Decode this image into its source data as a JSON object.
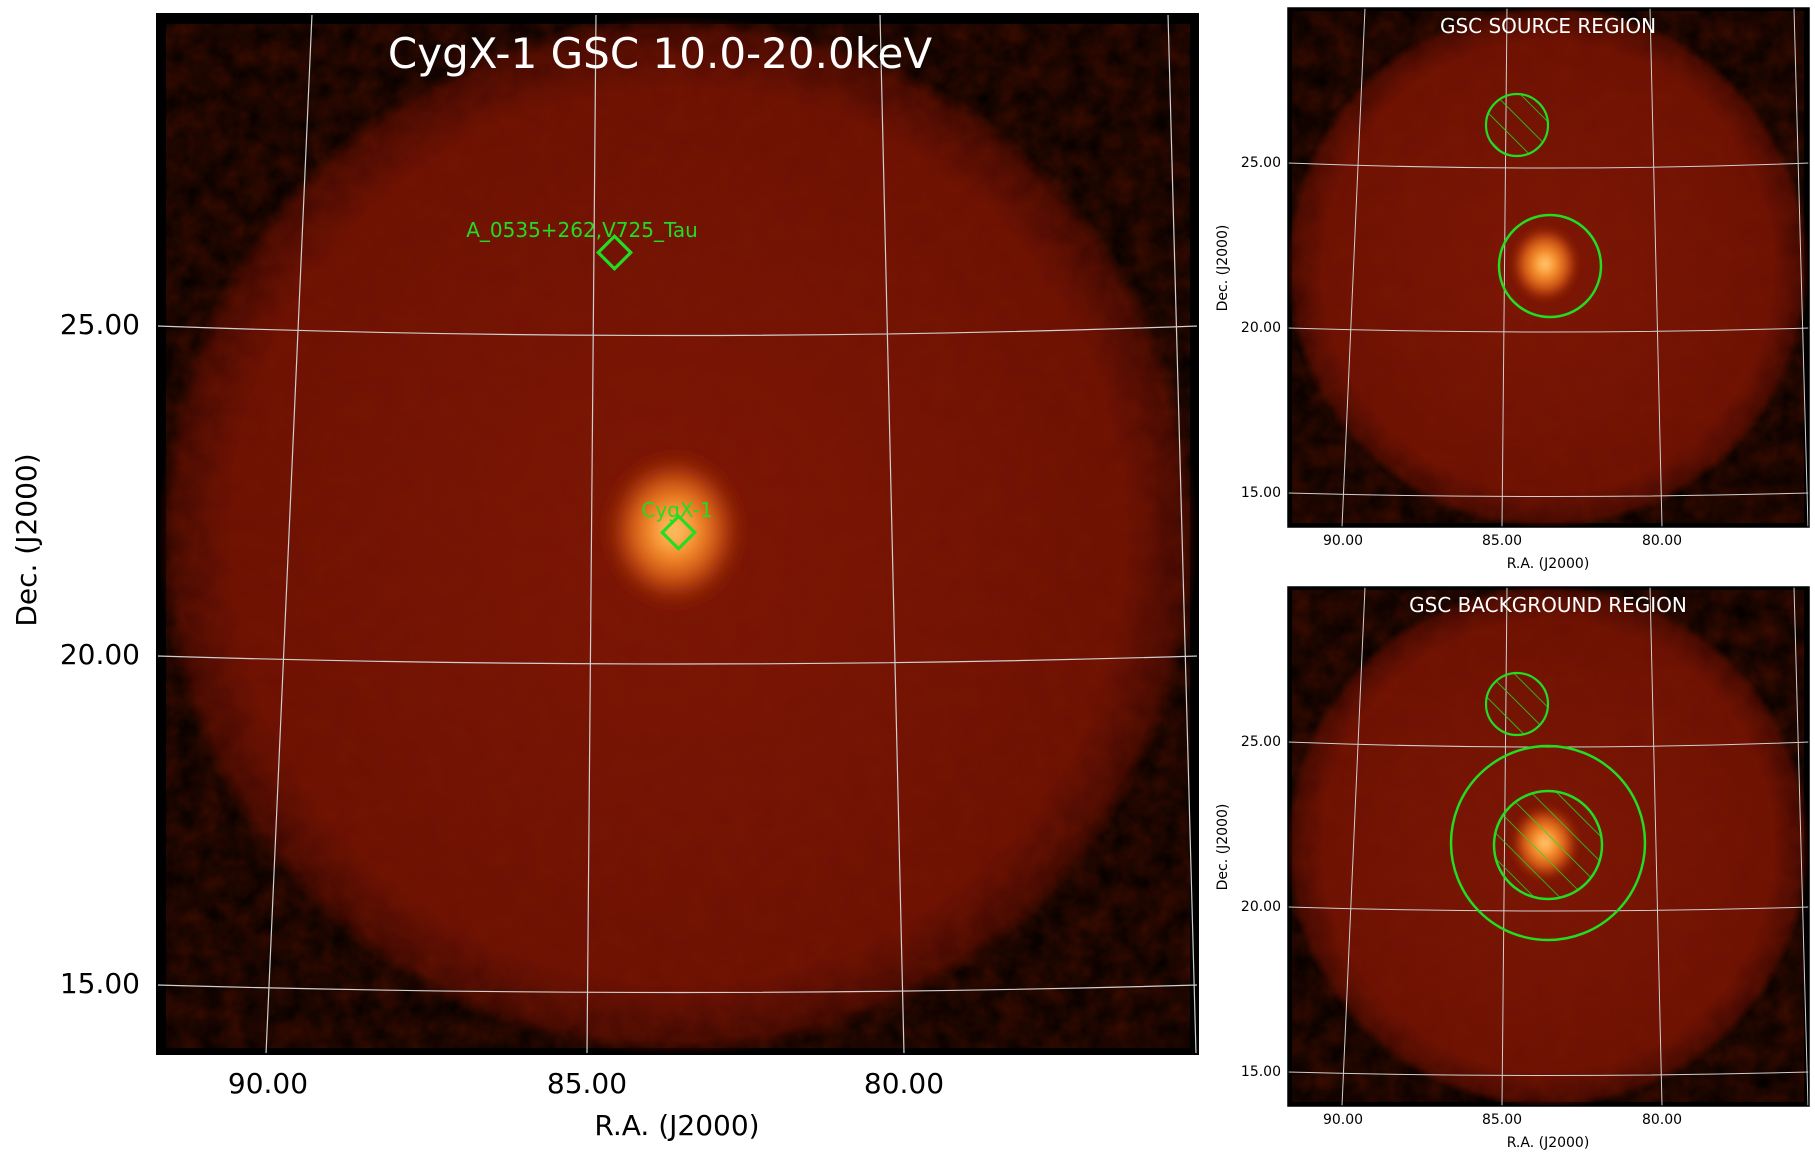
{
  "main_panel": {
    "title": "CygX-1 GSC 10.0-20.0keV",
    "xlabel": "R.A. (J2000)",
    "ylabel": "Dec. (J2000)",
    "xticks": [
      "90.00",
      "85.00",
      "80.00"
    ],
    "yticks": [
      "25.00",
      "20.00",
      "15.00"
    ],
    "sources": [
      {
        "name": "A_0535+262,V725_Tau",
        "ra": 84.73,
        "dec": 26.32
      },
      {
        "name": "CygX-1",
        "ra": 83.63,
        "dec": 22.01
      }
    ]
  },
  "source_panel": {
    "title": "GSC SOURCE REGION",
    "xlabel": "R.A. (J2000)",
    "ylabel": "Dec. (J2000)",
    "xticks": [
      "90.00",
      "85.00",
      "80.00"
    ],
    "yticks": [
      "25.00",
      "20.00",
      "15.00"
    ]
  },
  "background_panel": {
    "title": "GSC BACKGROUND REGION",
    "xlabel": "R.A. (J2000)",
    "ylabel": "Dec. (J2000)",
    "xticks": [
      "90.00",
      "85.00",
      "80.00"
    ],
    "yticks": [
      "25.00",
      "20.00",
      "15.00"
    ]
  },
  "colors": {
    "image_background": "#000000",
    "field_dark": "#5a0c02",
    "field_mid": "#7c1405",
    "source_core": "#ffc35a",
    "region_marker": "#22dd22",
    "grid_line": "#c8c8c8",
    "title_text": "#ffffff"
  }
}
